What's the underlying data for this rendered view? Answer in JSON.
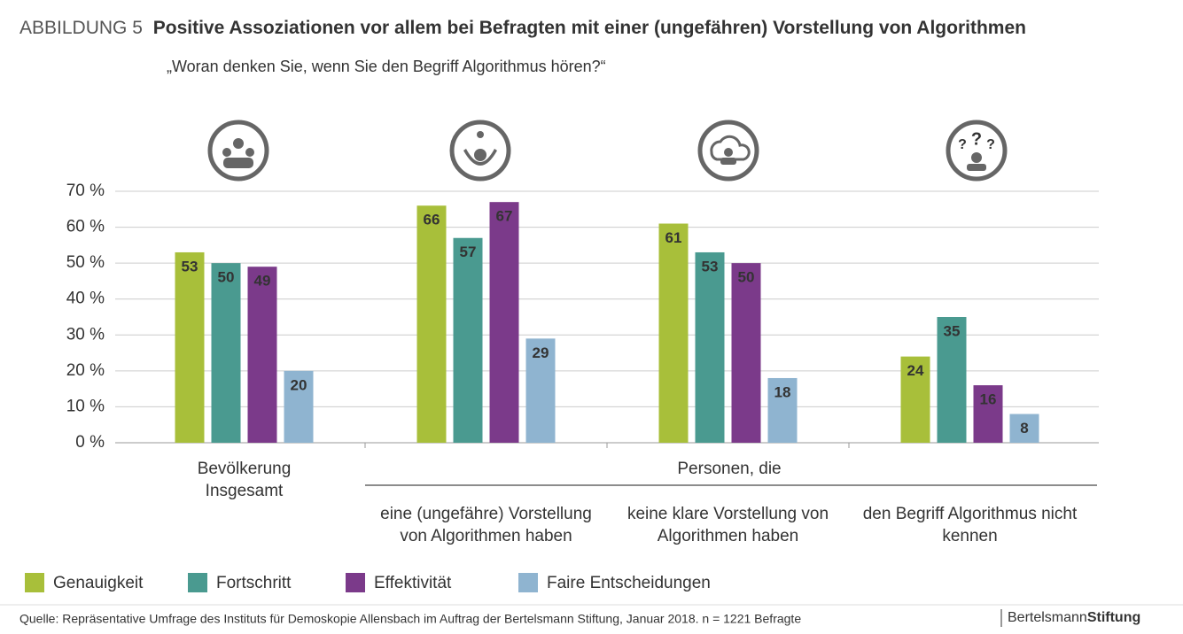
{
  "chart_data": {
    "type": "bar",
    "figure_label": "ABBILDUNG 5",
    "title": "Positive Assoziationen vor allem bei Befragten mit einer (ungefähren) Vorstellung von Algorithmen",
    "subtitle": "„Woran denken Sie, wenn Sie den Begriff Algorithmus hören?“",
    "categories": [
      "Bevölkerung Insgesamt",
      "eine (ungefähre) Vorstellung von Algorithmen haben",
      "keine klare Vorstellung von Algorithmen haben",
      "den Begriff Algorithmus nicht kennen"
    ],
    "group_label": "Personen, die",
    "series": [
      {
        "name": "Genauigkeit",
        "color": "#a8bf3a",
        "values": [
          53,
          66,
          61,
          24
        ]
      },
      {
        "name": "Fortschritt",
        "color": "#4a9a90",
        "values": [
          50,
          57,
          53,
          35
        ]
      },
      {
        "name": "Effektivität",
        "color": "#7b3a8a",
        "values": [
          49,
          67,
          50,
          16
        ]
      },
      {
        "name": "Faire Entscheidungen",
        "color": "#8fb4d0",
        "values": [
          20,
          29,
          18,
          8
        ]
      }
    ],
    "ylim": [
      0,
      70
    ],
    "yticks": [
      {
        "value": 0,
        "label": "0 %"
      },
      {
        "value": 10,
        "label": "10 %"
      },
      {
        "value": 20,
        "label": "20 %"
      },
      {
        "value": 30,
        "label": "30 %"
      },
      {
        "value": 40,
        "label": "40 %"
      },
      {
        "value": 50,
        "label": "50 %"
      },
      {
        "value": 60,
        "label": "60 %"
      },
      {
        "value": 70,
        "label": "70 %"
      }
    ],
    "grid": true,
    "source": "Quelle: Repräsentative Umfrage des Instituts für Demoskopie Allensbach im Auftrag der Bertelsmann Stiftung, Januar 2018. n = 1221 Befragte",
    "brand": [
      "Bertelsmann",
      "Stiftung"
    ]
  }
}
